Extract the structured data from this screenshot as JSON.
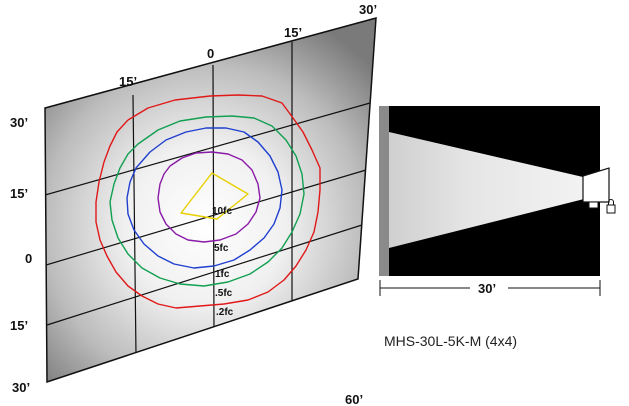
{
  "top_axis_labels": [
    "15’",
    "0",
    "15’",
    "30’"
  ],
  "left_axis_labels": [
    "30’",
    "15’",
    "0",
    "15’",
    "30’"
  ],
  "bottom_label": "60’",
  "contour_labels": [
    {
      "text": "10fc",
      "color": "#e8d000"
    },
    {
      "text": "5fc",
      "color": "#8a1aa8"
    },
    {
      "text": "1fc",
      "color": "#1f3fd0"
    },
    {
      "text": ".5fc",
      "color": "#10a050"
    },
    {
      "text": ".2fc",
      "color": "#e01818"
    }
  ],
  "side_view": {
    "distance_label": "30’",
    "model_label": "MHS-30L-5K-M (4x4)"
  }
}
